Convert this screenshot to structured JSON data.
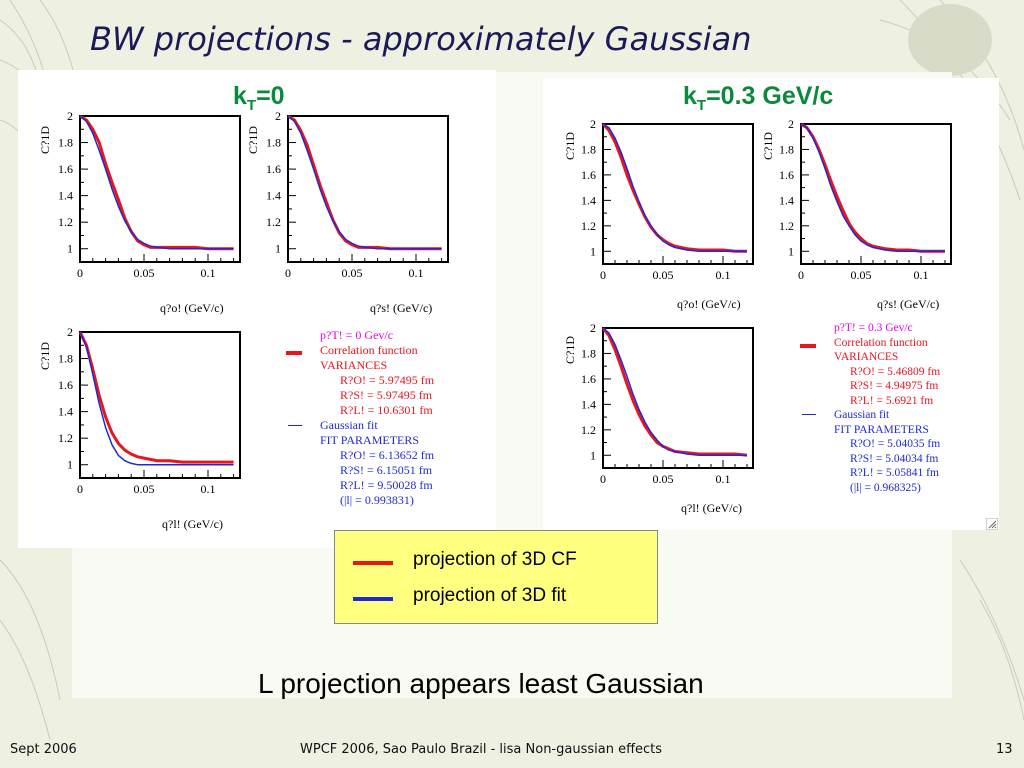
{
  "slide": {
    "title": "BW projections - approximately Gaussian",
    "caption": "L projection appears least Gaussian",
    "footer_left": "Sept 2006",
    "footer_center": "WPCF 2006, Sao Paulo Brazil - lisa Non-gaussian effects",
    "footer_right": "13"
  },
  "key": {
    "cf_label": "projection of 3D CF",
    "fit_label": "projection of 3D fit"
  },
  "colors": {
    "cf": "#e8141e",
    "fit": "#1f2ad6",
    "kt": "#0a8a3a",
    "magenta": "#e800e8"
  },
  "panels": [
    {
      "kt_main": "k",
      "kt_sub": "T",
      "kt_rest": "=0",
      "legend": {
        "pt": "p?T! = 0 Gev/c",
        "cf": "Correlation function",
        "variances": "VARIANCES",
        "var_rows": [
          "R?O! = 5.97495 fm",
          "R?S! = 5.97495 fm",
          "R?L! = 10.6301 fm"
        ],
        "fit": "Gaussian fit",
        "fitparams": "FIT PARAMETERS",
        "fit_rows": [
          "R?O! = 6.13652 fm",
          "R?S! = 6.15051 fm",
          "R?L! = 9.50028 fm",
          "(|l| = 0.993831)"
        ]
      }
    },
    {
      "kt_main": "k",
      "kt_sub": "T",
      "kt_rest": "=0.3 GeV/c",
      "legend": {
        "pt": "p?T! = 0.3 Gev/c",
        "cf": "Correlation function",
        "variances": "VARIANCES",
        "var_rows": [
          "R?O! = 5.46809 fm",
          "R?S! = 4.94975 fm",
          "R?L! = 5.6921 fm"
        ],
        "fit": "Gaussian fit",
        "fitparams": "FIT PARAMETERS",
        "fit_rows": [
          "R?O! = 5.04035 fm",
          "R?S! = 5.04034 fm",
          "R?L! = 5.05841 fm",
          "(|l| = 0.968325)"
        ]
      }
    }
  ],
  "chart_data": [
    {
      "type": "line",
      "panel": "kT=0",
      "xlabel": "q?o! (GeV/c)",
      "ylabel": "C?1D",
      "xlim": [
        0,
        0.125
      ],
      "ylim": [
        0.9,
        2.0
      ],
      "xticks": [
        "0",
        "0.05",
        "0.1"
      ],
      "yticks": [
        "1",
        "1.2",
        "1.4",
        "1.6",
        "1.8",
        "2"
      ],
      "xtick_values": [
        0,
        0.05,
        0.1
      ],
      "ytick_values": [
        1,
        1.2,
        1.4,
        1.6,
        1.8,
        2
      ],
      "series": [
        {
          "name": "projection of 3D CF",
          "x": [
            0,
            0.005,
            0.01,
            0.015,
            0.02,
            0.025,
            0.03,
            0.035,
            0.04,
            0.045,
            0.05,
            0.055,
            0.06,
            0.07,
            0.08,
            0.09,
            0.1,
            0.11,
            0.12
          ],
          "y": [
            2.0,
            1.97,
            1.9,
            1.8,
            1.64,
            1.5,
            1.37,
            1.23,
            1.13,
            1.06,
            1.03,
            1.01,
            1.01,
            1.01,
            1.01,
            1.01,
            1.0,
            1.0,
            1.0
          ]
        },
        {
          "name": "projection of 3D fit",
          "x": [
            0,
            0.005,
            0.01,
            0.015,
            0.02,
            0.025,
            0.03,
            0.035,
            0.04,
            0.045,
            0.05,
            0.055,
            0.06,
            0.07,
            0.08,
            0.09,
            0.1,
            0.11,
            0.12
          ],
          "y": [
            2.0,
            1.96,
            1.87,
            1.74,
            1.6,
            1.45,
            1.32,
            1.21,
            1.13,
            1.07,
            1.04,
            1.02,
            1.01,
            1.0,
            1.0,
            1.0,
            1.0,
            1.0,
            1.0
          ]
        }
      ]
    },
    {
      "type": "line",
      "panel": "kT=0",
      "xlabel": "q?s! (GeV/c)",
      "ylabel": "C?1D",
      "xlim": [
        0,
        0.125
      ],
      "ylim": [
        0.9,
        2.0
      ],
      "xticks": [
        "0",
        "0.05",
        "0.1"
      ],
      "yticks": [
        "1",
        "1.2",
        "1.4",
        "1.6",
        "1.8",
        "2"
      ],
      "xtick_values": [
        0,
        0.05,
        0.1
      ],
      "ytick_values": [
        1,
        1.2,
        1.4,
        1.6,
        1.8,
        2
      ],
      "series": [
        {
          "name": "projection of 3D CF",
          "x": [
            0,
            0.005,
            0.01,
            0.015,
            0.02,
            0.025,
            0.03,
            0.035,
            0.04,
            0.045,
            0.05,
            0.055,
            0.06,
            0.07,
            0.08,
            0.09,
            0.1,
            0.11,
            0.12
          ],
          "y": [
            2.0,
            1.97,
            1.89,
            1.78,
            1.63,
            1.48,
            1.35,
            1.22,
            1.12,
            1.06,
            1.03,
            1.01,
            1.01,
            1.01,
            1.0,
            1.0,
            1.0,
            1.0,
            1.0
          ]
        },
        {
          "name": "projection of 3D fit",
          "x": [
            0,
            0.005,
            0.01,
            0.015,
            0.02,
            0.025,
            0.03,
            0.035,
            0.04,
            0.045,
            0.05,
            0.055,
            0.06,
            0.07,
            0.08,
            0.09,
            0.1,
            0.11,
            0.12
          ],
          "y": [
            2.0,
            1.96,
            1.87,
            1.74,
            1.6,
            1.45,
            1.32,
            1.21,
            1.13,
            1.07,
            1.04,
            1.02,
            1.01,
            1.0,
            1.0,
            1.0,
            1.0,
            1.0,
            1.0
          ]
        }
      ]
    },
    {
      "type": "line",
      "panel": "kT=0",
      "xlabel": "q?l! (GeV/c)",
      "ylabel": "C?1D",
      "xlim": [
        0,
        0.125
      ],
      "ylim": [
        0.9,
        2.0
      ],
      "xticks": [
        "0",
        "0.05",
        "0.1"
      ],
      "yticks": [
        "1",
        "1.2",
        "1.4",
        "1.6",
        "1.8",
        "2"
      ],
      "xtick_values": [
        0,
        0.05,
        0.1
      ],
      "ytick_values": [
        1,
        1.2,
        1.4,
        1.6,
        1.8,
        2
      ],
      "series": [
        {
          "name": "projection of 3D CF",
          "x": [
            0,
            0.005,
            0.01,
            0.015,
            0.02,
            0.025,
            0.03,
            0.035,
            0.04,
            0.045,
            0.05,
            0.055,
            0.06,
            0.07,
            0.08,
            0.09,
            0.1,
            0.11,
            0.12
          ],
          "y": [
            2.0,
            1.9,
            1.72,
            1.52,
            1.36,
            1.24,
            1.16,
            1.11,
            1.08,
            1.06,
            1.05,
            1.04,
            1.03,
            1.03,
            1.02,
            1.02,
            1.02,
            1.02,
            1.02
          ]
        },
        {
          "name": "projection of 3D fit",
          "x": [
            0,
            0.005,
            0.01,
            0.015,
            0.02,
            0.025,
            0.03,
            0.035,
            0.04,
            0.045,
            0.05,
            0.055,
            0.06,
            0.07,
            0.08,
            0.09,
            0.1,
            0.11,
            0.12
          ],
          "y": [
            2.0,
            1.89,
            1.68,
            1.46,
            1.28,
            1.15,
            1.07,
            1.03,
            1.01,
            1.0,
            1.0,
            1.0,
            1.0,
            1.0,
            1.0,
            1.0,
            1.0,
            1.0,
            1.0
          ]
        }
      ]
    },
    {
      "type": "line",
      "panel": "kT=0.3 GeV/c",
      "xlabel": "q?o! (GeV/c)",
      "ylabel": "C?1D",
      "xlim": [
        0,
        0.125
      ],
      "ylim": [
        0.9,
        2.0
      ],
      "xticks": [
        "0",
        "0.05",
        "0.1"
      ],
      "yticks": [
        "1",
        "1.2",
        "1.4",
        "1.6",
        "1.8",
        "2"
      ],
      "xtick_values": [
        0,
        0.05,
        0.1
      ],
      "ytick_values": [
        1,
        1.2,
        1.4,
        1.6,
        1.8,
        2
      ],
      "series": [
        {
          "name": "projection of 3D CF",
          "x": [
            0,
            0.005,
            0.01,
            0.015,
            0.02,
            0.025,
            0.03,
            0.035,
            0.04,
            0.045,
            0.05,
            0.055,
            0.06,
            0.07,
            0.08,
            0.09,
            0.1,
            0.11,
            0.12
          ],
          "y": [
            2.0,
            1.95,
            1.86,
            1.74,
            1.6,
            1.48,
            1.37,
            1.27,
            1.19,
            1.13,
            1.09,
            1.06,
            1.04,
            1.02,
            1.01,
            1.01,
            1.01,
            1.0,
            1.0
          ]
        },
        {
          "name": "projection of 3D fit",
          "x": [
            0,
            0.005,
            0.01,
            0.015,
            0.02,
            0.025,
            0.03,
            0.035,
            0.04,
            0.045,
            0.05,
            0.055,
            0.06,
            0.07,
            0.08,
            0.09,
            0.1,
            0.11,
            0.12
          ],
          "y": [
            2.0,
            1.97,
            1.89,
            1.78,
            1.65,
            1.51,
            1.39,
            1.28,
            1.2,
            1.13,
            1.08,
            1.05,
            1.03,
            1.01,
            1.0,
            1.0,
            1.0,
            1.0,
            1.0
          ]
        }
      ]
    },
    {
      "type": "line",
      "panel": "kT=0.3 GeV/c",
      "xlabel": "q?s! (GeV/c)",
      "ylabel": "C?1D",
      "xlim": [
        0,
        0.125
      ],
      "ylim": [
        0.9,
        2.0
      ],
      "xticks": [
        "0",
        "0.05",
        "0.1"
      ],
      "yticks": [
        "1",
        "1.2",
        "1.4",
        "1.6",
        "1.8",
        "2"
      ],
      "xtick_values": [
        0,
        0.05,
        0.1
      ],
      "ytick_values": [
        1,
        1.2,
        1.4,
        1.6,
        1.8,
        2
      ],
      "series": [
        {
          "name": "projection of 3D CF",
          "x": [
            0,
            0.005,
            0.01,
            0.015,
            0.02,
            0.025,
            0.03,
            0.035,
            0.04,
            0.045,
            0.05,
            0.055,
            0.06,
            0.07,
            0.08,
            0.09,
            0.1,
            0.11,
            0.12
          ],
          "y": [
            2.0,
            1.97,
            1.9,
            1.8,
            1.68,
            1.55,
            1.43,
            1.32,
            1.22,
            1.15,
            1.1,
            1.06,
            1.04,
            1.02,
            1.01,
            1.01,
            1.0,
            1.0,
            1.0
          ]
        },
        {
          "name": "projection of 3D fit",
          "x": [
            0,
            0.005,
            0.01,
            0.015,
            0.02,
            0.025,
            0.03,
            0.035,
            0.04,
            0.045,
            0.05,
            0.055,
            0.06,
            0.07,
            0.08,
            0.09,
            0.1,
            0.11,
            0.12
          ],
          "y": [
            2.0,
            1.97,
            1.89,
            1.78,
            1.65,
            1.51,
            1.39,
            1.28,
            1.2,
            1.13,
            1.08,
            1.05,
            1.03,
            1.01,
            1.0,
            1.0,
            1.0,
            1.0,
            1.0
          ]
        }
      ]
    },
    {
      "type": "line",
      "panel": "kT=0.3 GeV/c",
      "xlabel": "q?l! (GeV/c)",
      "ylabel": "C?1D",
      "xlim": [
        0,
        0.125
      ],
      "ylim": [
        0.9,
        2.0
      ],
      "xticks": [
        "0",
        "0.05",
        "0.1"
      ],
      "yticks": [
        "1",
        "1.2",
        "1.4",
        "1.6",
        "1.8",
        "2"
      ],
      "xtick_values": [
        0,
        0.05,
        0.1
      ],
      "ytick_values": [
        1,
        1.2,
        1.4,
        1.6,
        1.8,
        2
      ],
      "series": [
        {
          "name": "projection of 3D CF",
          "x": [
            0,
            0.005,
            0.01,
            0.015,
            0.02,
            0.025,
            0.03,
            0.035,
            0.04,
            0.045,
            0.05,
            0.055,
            0.06,
            0.07,
            0.08,
            0.09,
            0.1,
            0.11,
            0.12
          ],
          "y": [
            2.0,
            1.94,
            1.83,
            1.7,
            1.56,
            1.43,
            1.32,
            1.23,
            1.16,
            1.1,
            1.07,
            1.05,
            1.03,
            1.02,
            1.01,
            1.01,
            1.01,
            1.01,
            1.0
          ]
        },
        {
          "name": "projection of 3D fit",
          "x": [
            0,
            0.005,
            0.01,
            0.015,
            0.02,
            0.025,
            0.03,
            0.035,
            0.04,
            0.045,
            0.05,
            0.055,
            0.06,
            0.07,
            0.08,
            0.09,
            0.1,
            0.11,
            0.12
          ],
          "y": [
            2.0,
            1.96,
            1.87,
            1.75,
            1.62,
            1.48,
            1.36,
            1.26,
            1.18,
            1.12,
            1.07,
            1.04,
            1.03,
            1.01,
            1.0,
            1.0,
            1.0,
            1.0,
            1.0
          ]
        }
      ]
    }
  ]
}
